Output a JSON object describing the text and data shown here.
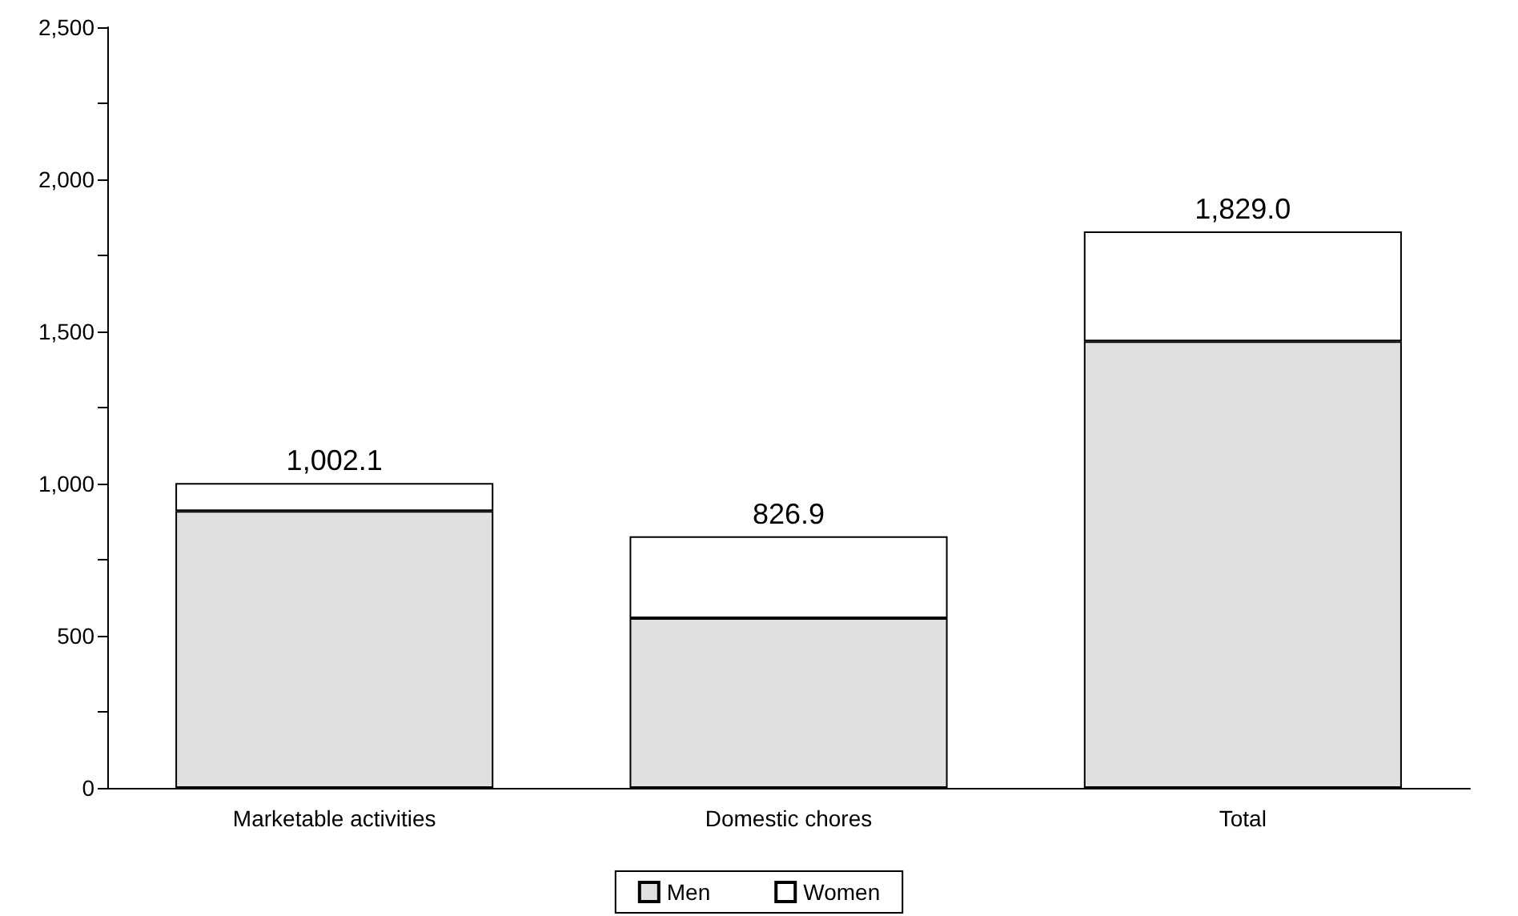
{
  "chart_data": {
    "type": "bar",
    "stacked": true,
    "categories": [
      "Marketable activities",
      "Domestic chores",
      "Total"
    ],
    "series": [
      {
        "name": "Men",
        "color": "#e0e0e0",
        "values": [
          910,
          558,
          1468
        ]
      },
      {
        "name": "Women",
        "color": "#ffffff",
        "values": [
          92,
          269,
          361
        ]
      }
    ],
    "totals": [
      "1,002.1",
      "826.9",
      "1,829.0"
    ],
    "ylim": [
      0,
      2500
    ],
    "yticks": [
      0,
      {
        "value": 250,
        "label": null
      },
      500,
      {
        "value": 750,
        "label": null
      },
      {
        "value": 1000,
        "label": "1,000"
      },
      {
        "value": 1250,
        "label": null
      },
      {
        "value": 1500,
        "label": "1,500"
      },
      {
        "value": 1750,
        "label": null
      },
      {
        "value": 2000,
        "label": "2,000"
      },
      {
        "value": 2250,
        "label": null
      },
      {
        "value": 2500,
        "label": "2,500"
      }
    ],
    "grid": false,
    "legend": "bottom"
  }
}
